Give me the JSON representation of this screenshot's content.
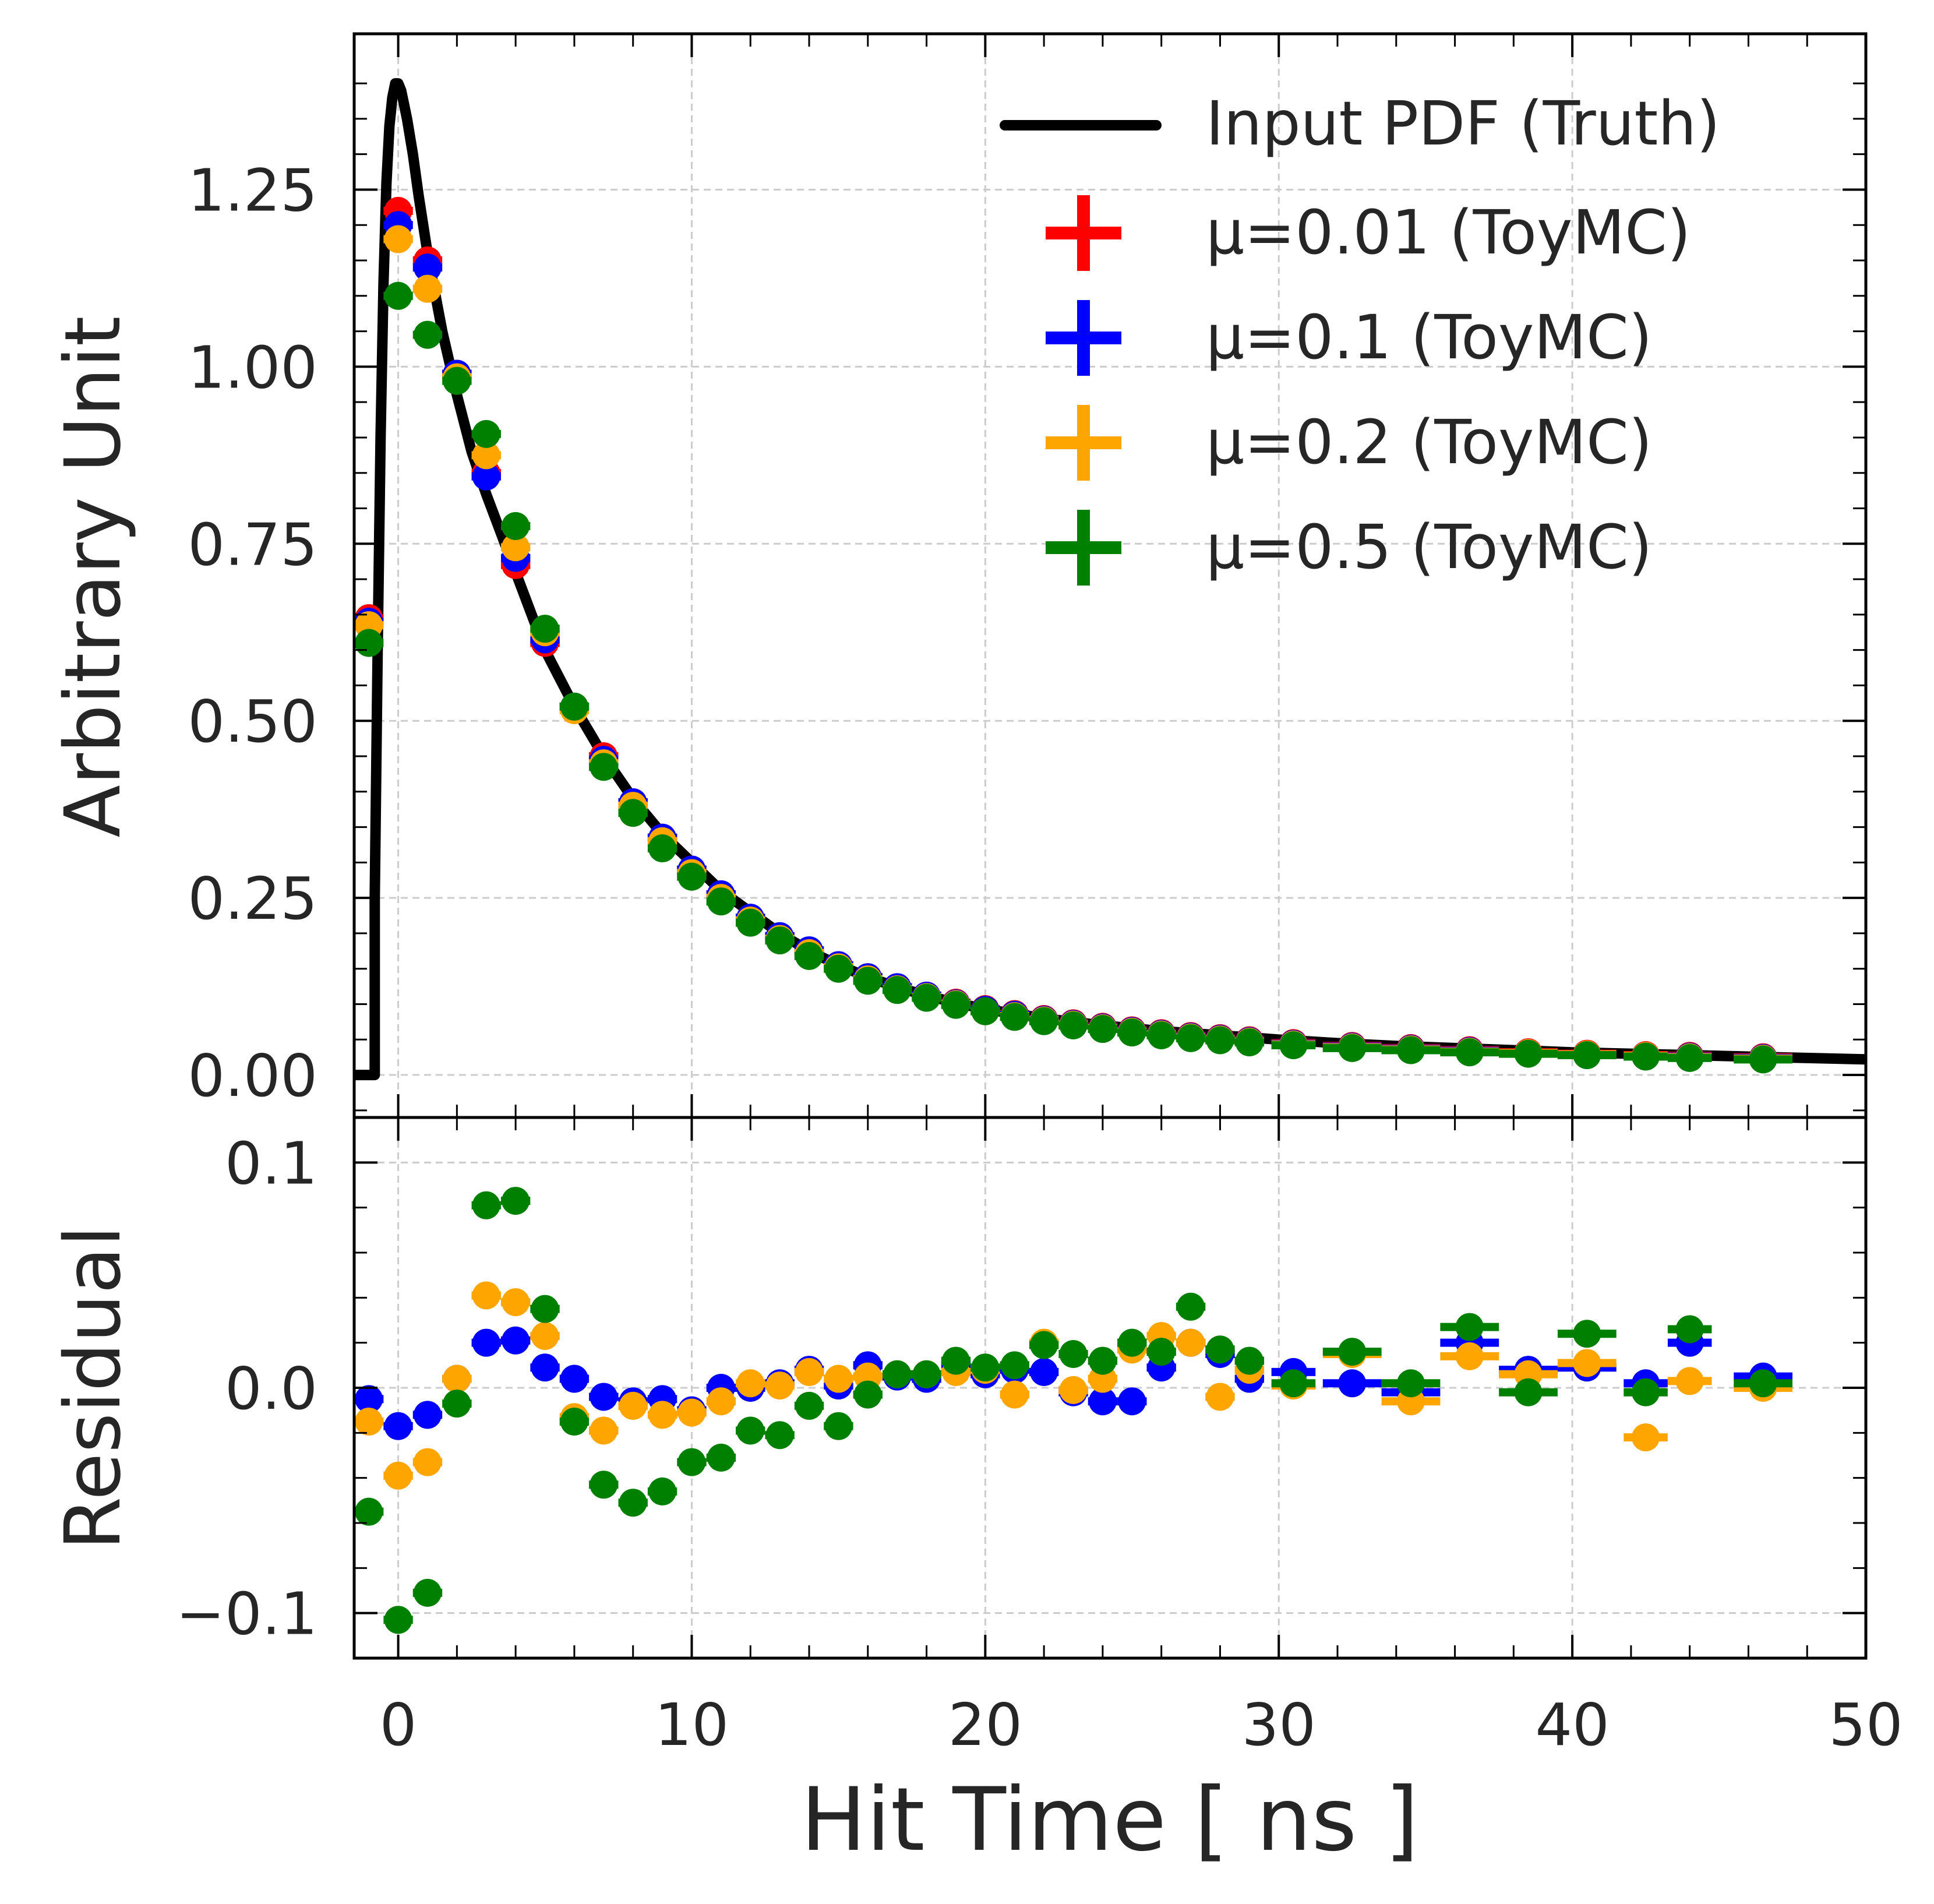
{
  "chart_data": [
    {
      "panel": "main",
      "type": "scatter",
      "xlabel": "Hit Time [ ns ]",
      "ylabel": "Arbitrary Unit",
      "xlim": [
        -1.5,
        50
      ],
      "ylim": [
        -0.06,
        1.47
      ],
      "grid": true,
      "yticks": [
        0.0,
        0.25,
        0.5,
        0.75,
        1.0,
        1.25
      ],
      "ytick_labels": [
        "0.00",
        "0.25",
        "0.50",
        "0.75",
        "1.00",
        "1.25"
      ],
      "legend_position": "top-right",
      "legend": [
        {
          "label": "Input PDF (Truth)",
          "color": "#000000",
          "kind": "line"
        },
        {
          "label": "μ=0.01 (ToyMC)",
          "color": "#ff0000",
          "kind": "errorbar"
        },
        {
          "label": "μ=0.1 (ToyMC)",
          "color": "#0000ff",
          "kind": "errorbar"
        },
        {
          "label": "μ=0.2 (ToyMC)",
          "color": "#ffa500",
          "kind": "errorbar"
        },
        {
          "label": "μ=0.5 (ToyMC)",
          "color": "#008000",
          "kind": "errorbar"
        }
      ],
      "truth_pdf": {
        "x": [
          -1.5,
          -0.8,
          -0.8,
          -0.7,
          -0.6,
          -0.5,
          -0.4,
          -0.3,
          -0.2,
          -0.1,
          0.0,
          0.1,
          0.2,
          0.3,
          0.5,
          0.7,
          1.0,
          1.5,
          2.0,
          2.5,
          3.0,
          4.0,
          5.0,
          6.0,
          7.0,
          8.0,
          9.0,
          10.0,
          11.0,
          12.0,
          13.0,
          14.0,
          15.0,
          16.0,
          17.0,
          18.0,
          19.0,
          20.0,
          22.0,
          24.0,
          26.0,
          28.0,
          30.0,
          32.0,
          34.0,
          36.0,
          38.0,
          40.0,
          42.0,
          44.0,
          46.0,
          48.0,
          50.0
        ],
        "y": [
          0.0,
          0.0,
          0.25,
          0.6,
          0.9,
          1.12,
          1.26,
          1.34,
          1.38,
          1.4,
          1.4,
          1.39,
          1.37,
          1.35,
          1.3,
          1.24,
          1.16,
          1.05,
          0.96,
          0.88,
          0.82,
          0.71,
          0.6,
          0.52,
          0.45,
          0.39,
          0.34,
          0.3,
          0.26,
          0.23,
          0.2,
          0.175,
          0.155,
          0.138,
          0.124,
          0.112,
          0.102,
          0.093,
          0.08,
          0.07,
          0.062,
          0.056,
          0.05,
          0.045,
          0.041,
          0.038,
          0.035,
          0.032,
          0.03,
          0.028,
          0.026,
          0.024,
          0.022
        ]
      },
      "bins": [
        -1,
        0,
        1,
        2,
        3,
        4,
        5,
        6,
        7,
        8,
        9,
        10,
        11,
        12,
        13,
        14,
        15,
        16,
        17,
        18,
        19,
        20,
        21,
        22,
        23,
        24,
        25,
        26,
        27,
        28,
        29,
        30.5,
        32.5,
        34.5,
        36.5,
        38.5,
        40.5,
        42.5,
        44,
        46.5
      ],
      "series": [
        {
          "name": "μ=0.01 (ToyMC)",
          "color": "#ff0000",
          "values": [
            0.645,
            1.22,
            1.15,
            0.99,
            0.85,
            0.72,
            0.61,
            0.52,
            0.45,
            0.385,
            0.335,
            0.29,
            0.255,
            0.22,
            0.195,
            0.175,
            0.155,
            0.138,
            0.124,
            0.112,
            0.102,
            0.093,
            0.086,
            0.079,
            0.073,
            0.068,
            0.063,
            0.059,
            0.055,
            0.052,
            0.049,
            0.045,
            0.041,
            0.038,
            0.035,
            0.032,
            0.03,
            0.028,
            0.027,
            0.025
          ]
        },
        {
          "name": "μ=0.1 (ToyMC)",
          "color": "#0000ff",
          "values": [
            0.64,
            1.2,
            1.14,
            0.99,
            0.845,
            0.73,
            0.615,
            0.52,
            0.445,
            0.385,
            0.335,
            0.29,
            0.255,
            0.222,
            0.196,
            0.176,
            0.155,
            0.138,
            0.124,
            0.112,
            0.101,
            0.092,
            0.085,
            0.078,
            0.072,
            0.067,
            0.062,
            0.058,
            0.054,
            0.051,
            0.048,
            0.044,
            0.04,
            0.037,
            0.034,
            0.031,
            0.029,
            0.027,
            0.026,
            0.024
          ]
        },
        {
          "name": "μ=0.2 (ToyMC)",
          "color": "#ffa500",
          "values": [
            0.635,
            1.18,
            1.11,
            0.985,
            0.875,
            0.745,
            0.625,
            0.515,
            0.44,
            0.38,
            0.33,
            0.285,
            0.25,
            0.218,
            0.192,
            0.172,
            0.152,
            0.135,
            0.121,
            0.11,
            0.1,
            0.09,
            0.083,
            0.077,
            0.071,
            0.066,
            0.061,
            0.057,
            0.053,
            0.05,
            0.047,
            0.043,
            0.039,
            0.036,
            0.033,
            0.031,
            0.029,
            0.027,
            0.025,
            0.023
          ]
        },
        {
          "name": "μ=0.5 (ToyMC)",
          "color": "#008000",
          "values": [
            0.61,
            1.1,
            1.045,
            0.98,
            0.905,
            0.775,
            0.63,
            0.52,
            0.435,
            0.37,
            0.32,
            0.28,
            0.245,
            0.215,
            0.19,
            0.168,
            0.15,
            0.133,
            0.12,
            0.109,
            0.099,
            0.09,
            0.082,
            0.076,
            0.07,
            0.065,
            0.06,
            0.056,
            0.052,
            0.049,
            0.046,
            0.042,
            0.038,
            0.035,
            0.032,
            0.03,
            0.028,
            0.026,
            0.024,
            0.022
          ]
        }
      ]
    },
    {
      "panel": "residual",
      "type": "scatter",
      "xlabel": "Hit Time [ ns ]",
      "ylabel": "Residual",
      "xlim": [
        -1.5,
        50
      ],
      "ylim": [
        -0.12,
        0.12
      ],
      "grid": true,
      "yticks": [
        -0.1,
        0.0,
        0.1
      ],
      "ytick_labels": [
        "−0.1",
        "0.0",
        "0.1"
      ],
      "xticks": [
        0,
        10,
        20,
        30,
        40,
        50
      ],
      "xtick_labels": [
        "0",
        "10",
        "20",
        "30",
        "40",
        "50"
      ],
      "bins": [
        -1,
        0,
        1,
        2,
        3,
        4,
        5,
        6,
        7,
        8,
        9,
        10,
        11,
        12,
        13,
        14,
        15,
        16,
        17,
        18,
        19,
        20,
        21,
        22,
        23,
        24,
        25,
        26,
        27,
        28,
        29,
        30.5,
        32.5,
        34.5,
        36.5,
        38.5,
        40.5,
        42.5,
        44,
        46.5
      ],
      "series": [
        {
          "name": "μ=0.1 (ToyMC)",
          "color": "#0000ff",
          "values": [
            -0.005,
            -0.017,
            -0.012,
            0.004,
            0.02,
            0.021,
            0.009,
            0.004,
            -0.004,
            -0.006,
            -0.005,
            -0.01,
            0.0,
            0.0,
            0.002,
            0.008,
            0.001,
            0.01,
            0.005,
            0.004,
            0.01,
            0.006,
            0.008,
            0.007,
            -0.002,
            -0.006,
            -0.006,
            0.009,
            0.02,
            0.015,
            0.004,
            0.007,
            0.002,
            -0.002,
            0.02,
            0.008,
            0.009,
            0.002,
            0.02,
            0.005
          ]
        },
        {
          "name": "μ=0.2 (ToyMC)",
          "color": "#ffa500",
          "values": [
            -0.015,
            -0.039,
            -0.033,
            0.004,
            0.041,
            0.038,
            0.023,
            -0.013,
            -0.019,
            -0.008,
            -0.012,
            -0.011,
            -0.006,
            0.002,
            0.001,
            0.007,
            0.004,
            0.005,
            0.006,
            0.006,
            0.007,
            0.008,
            -0.003,
            0.02,
            -0.001,
            0.004,
            0.017,
            0.023,
            0.02,
            -0.004,
            0.008,
            0.001,
            0.015,
            -0.006,
            0.014,
            0.006,
            0.011,
            -0.022,
            0.003,
            0.0
          ]
        },
        {
          "name": "μ=0.5 (ToyMC)",
          "color": "#008000",
          "values": [
            -0.055,
            -0.103,
            -0.091,
            -0.007,
            0.081,
            0.083,
            0.035,
            -0.015,
            -0.043,
            -0.051,
            -0.046,
            -0.033,
            -0.031,
            -0.019,
            -0.021,
            -0.008,
            -0.017,
            -0.003,
            0.006,
            0.006,
            0.012,
            0.009,
            0.01,
            0.019,
            0.015,
            0.012,
            0.02,
            0.016,
            0.036,
            0.017,
            0.012,
            0.002,
            0.016,
            0.002,
            0.027,
            -0.002,
            0.024,
            -0.002,
            0.026,
            0.002
          ]
        }
      ]
    }
  ]
}
